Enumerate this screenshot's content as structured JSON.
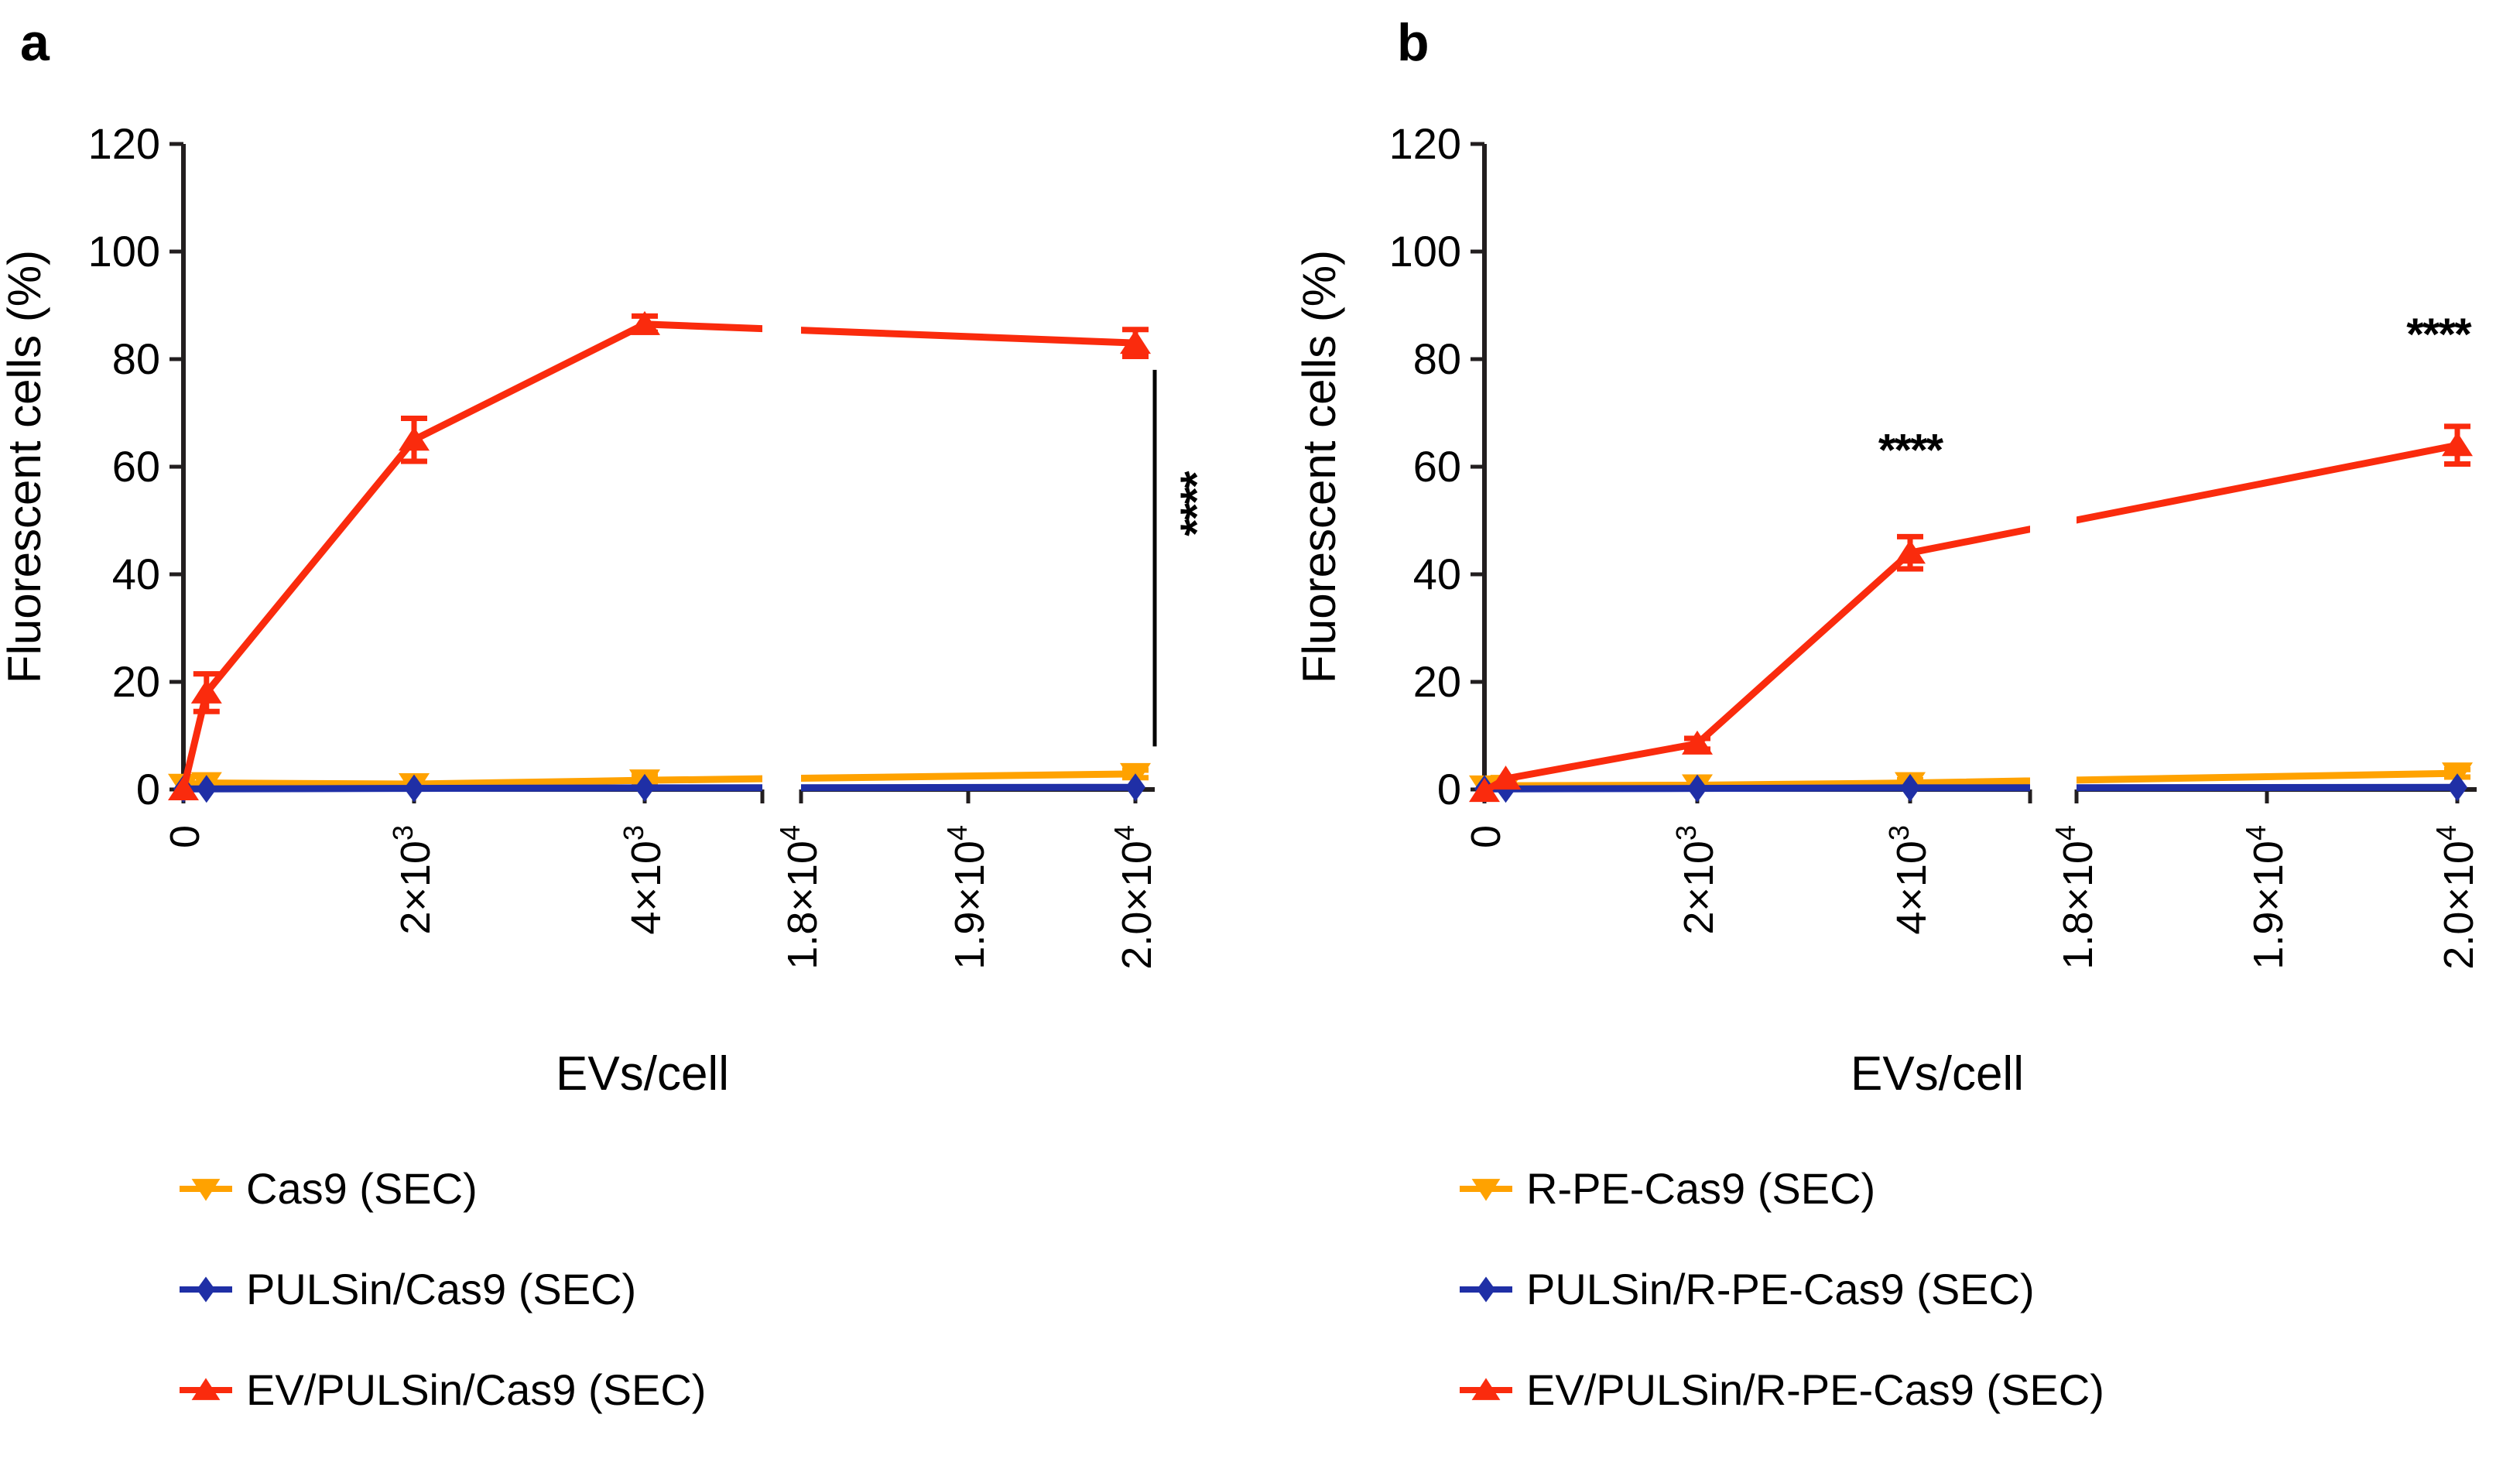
{
  "figure": {
    "background": "#ffffff",
    "axis_color": "#221e1f",
    "star_color": "#000000"
  },
  "chart_data": [
    {
      "id": "a",
      "type": "line",
      "panel_label": "a",
      "xlabel": "EVs/cell",
      "ylabel": "Fluorescent cells (%)",
      "ylim": [
        0,
        120
      ],
      "yticks": [
        0,
        20,
        40,
        60,
        80,
        100,
        120
      ],
      "xticks": [
        {
          "label": "0",
          "x": 0
        },
        {
          "label": "2×10^3",
          "x": 2000
        },
        {
          "label": "4×10^3",
          "x": 4000
        },
        {
          "label": "1.8×10^4",
          "x": 18000
        },
        {
          "label": "1.9×10^4",
          "x": 19000
        },
        {
          "label": "2.0×10^4",
          "x": 20000
        }
      ],
      "axis_break": {
        "between": [
          4000,
          18000
        ]
      },
      "grid": false,
      "legend_position": "bottom-left",
      "series": [
        {
          "name": "Cas9 (SEC)",
          "color": "#FFA200",
          "marker": "triangle-down",
          "points": [
            {
              "x": 0,
              "y": 0.9
            },
            {
              "x": 200,
              "y": 1.2
            },
            {
              "x": 2000,
              "y": 1.0
            },
            {
              "x": 4000,
              "y": 1.7,
              "err": 0.8
            },
            {
              "x": 20000,
              "y": 2.9,
              "err": 0.7
            }
          ]
        },
        {
          "name": "PULSin/Cas9 (SEC)",
          "color": "#1F2FA6",
          "marker": "diamond",
          "points": [
            {
              "x": 0,
              "y": 0.1
            },
            {
              "x": 200,
              "y": 0.1
            },
            {
              "x": 2000,
              "y": 0.2
            },
            {
              "x": 4000,
              "y": 0.3
            },
            {
              "x": 20000,
              "y": 0.4
            }
          ]
        },
        {
          "name": "EV/PULSin/Cas9 (SEC)",
          "color": "#FA2B0D",
          "marker": "triangle-up",
          "points": [
            {
              "x": 0,
              "y": 0.0
            },
            {
              "x": 200,
              "y": 18,
              "err": 3.5
            },
            {
              "x": 2000,
              "y": 65,
              "err": 4
            },
            {
              "x": 4000,
              "y": 86.5,
              "err": 1.5
            },
            {
              "x": 20000,
              "y": 83,
              "err": 2.5
            }
          ]
        }
      ],
      "annotations": [
        {
          "type": "comparison-line",
          "stars": "****",
          "x": 20000,
          "y_top": 78,
          "y_bottom": 8,
          "orientation": "vertical"
        }
      ]
    },
    {
      "id": "b",
      "type": "line",
      "panel_label": "b",
      "xlabel": "EVs/cell",
      "ylabel": "Fluorescent cells (%)",
      "ylim": [
        0,
        120
      ],
      "yticks": [
        0,
        20,
        40,
        60,
        80,
        100,
        120
      ],
      "xticks": [
        {
          "label": "0",
          "x": 0
        },
        {
          "label": "2×10^3",
          "x": 2000
        },
        {
          "label": "4×10^3",
          "x": 4000
        },
        {
          "label": "1.8×10^4",
          "x": 18000
        },
        {
          "label": "1.9×10^4",
          "x": 19000
        },
        {
          "label": "2.0×10^4",
          "x": 20000
        }
      ],
      "axis_break": {
        "between": [
          4000,
          18000
        ]
      },
      "grid": false,
      "legend_position": "bottom-left",
      "series": [
        {
          "name": "R-PE-Cas9 (SEC)",
          "color": "#FFA200",
          "marker": "triangle-down",
          "points": [
            {
              "x": 0,
              "y": 0.6
            },
            {
              "x": 200,
              "y": 0.7
            },
            {
              "x": 2000,
              "y": 0.8
            },
            {
              "x": 4000,
              "y": 1.2,
              "err": 0.6
            },
            {
              "x": 20000,
              "y": 3.0,
              "err": 0.7
            }
          ]
        },
        {
          "name": "PULSin/R-PE-Cas9 (SEC)",
          "color": "#1F2FA6",
          "marker": "diamond",
          "points": [
            {
              "x": 0,
              "y": 0.1
            },
            {
              "x": 200,
              "y": 0.1
            },
            {
              "x": 2000,
              "y": 0.2
            },
            {
              "x": 4000,
              "y": 0.3
            },
            {
              "x": 20000,
              "y": 0.4
            }
          ]
        },
        {
          "name": "EV/PULSin/R-PE-Cas9 (SEC)",
          "color": "#FA2B0D",
          "marker": "triangle-up",
          "points": [
            {
              "x": 0,
              "y": -0.3
            },
            {
              "x": 200,
              "y": 2
            },
            {
              "x": 2000,
              "y": 8.5,
              "err": 1
            },
            {
              "x": 4000,
              "y": 44,
              "err": 3
            },
            {
              "x": 20000,
              "y": 64,
              "err": 3.5
            }
          ]
        }
      ],
      "annotations": [
        {
          "type": "stars",
          "stars": "****",
          "x": 4000,
          "y": 66
        },
        {
          "type": "stars",
          "stars": "****",
          "x": 19900,
          "y": 87.5
        }
      ]
    }
  ]
}
